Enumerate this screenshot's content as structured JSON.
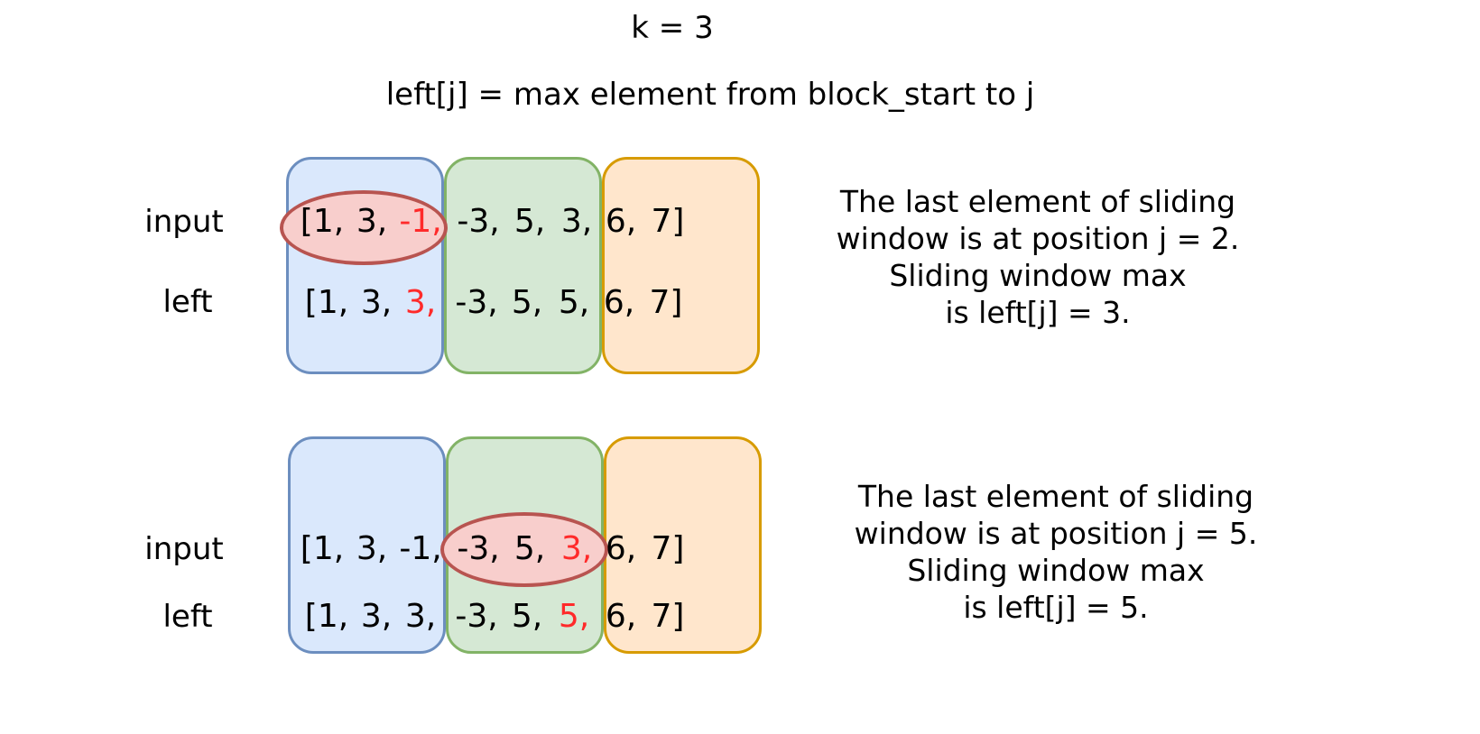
{
  "header": {
    "k_label": "k = 3",
    "definition": "left[j] = max element from block_start to j"
  },
  "colors": {
    "block1_fill": "#dae8fc",
    "block1_border": "#6c8ebf",
    "block2_fill": "#d5e8d4",
    "block2_border": "#82b366",
    "block3_fill": "#ffe6cc",
    "block3_border": "#d79b00",
    "highlight_fill": "#f8cecc",
    "highlight_border": "#b85450",
    "highlight_text": "#ff2a2a"
  },
  "example1": {
    "input_label": "input",
    "left_label": "left",
    "input_row": {
      "b1": [
        "[1,",
        "3,",
        "-1,"
      ],
      "b2": [
        "-3,",
        "5,",
        "3,"
      ],
      "b3": [
        "6,",
        "7]"
      ]
    },
    "left_row": {
      "b1": [
        "[1,",
        "3,",
        "3,"
      ],
      "b2": [
        "-3,",
        "5,",
        "5,"
      ],
      "b3": [
        "6,",
        "7]"
      ]
    },
    "description": [
      "The last element of sliding",
      "window is at position j = 2.",
      "Sliding window max",
      "is left[j] = 3."
    ]
  },
  "example2": {
    "input_label": "input",
    "left_label": "left",
    "input_row": {
      "b1": [
        "[1,",
        "3,",
        "-1,"
      ],
      "b2": [
        "-3,",
        "5,",
        "3,"
      ],
      "b3": [
        "6,",
        "7]"
      ]
    },
    "left_row": {
      "b1": [
        "[1,",
        "3,",
        "3,"
      ],
      "b2": [
        "-3,",
        "5,",
        "5,"
      ],
      "b3": [
        "6,",
        "7]"
      ]
    },
    "description": [
      "The last element of sliding",
      "window is at position j = 5.",
      "Sliding window max",
      "is left[j] = 5."
    ]
  }
}
